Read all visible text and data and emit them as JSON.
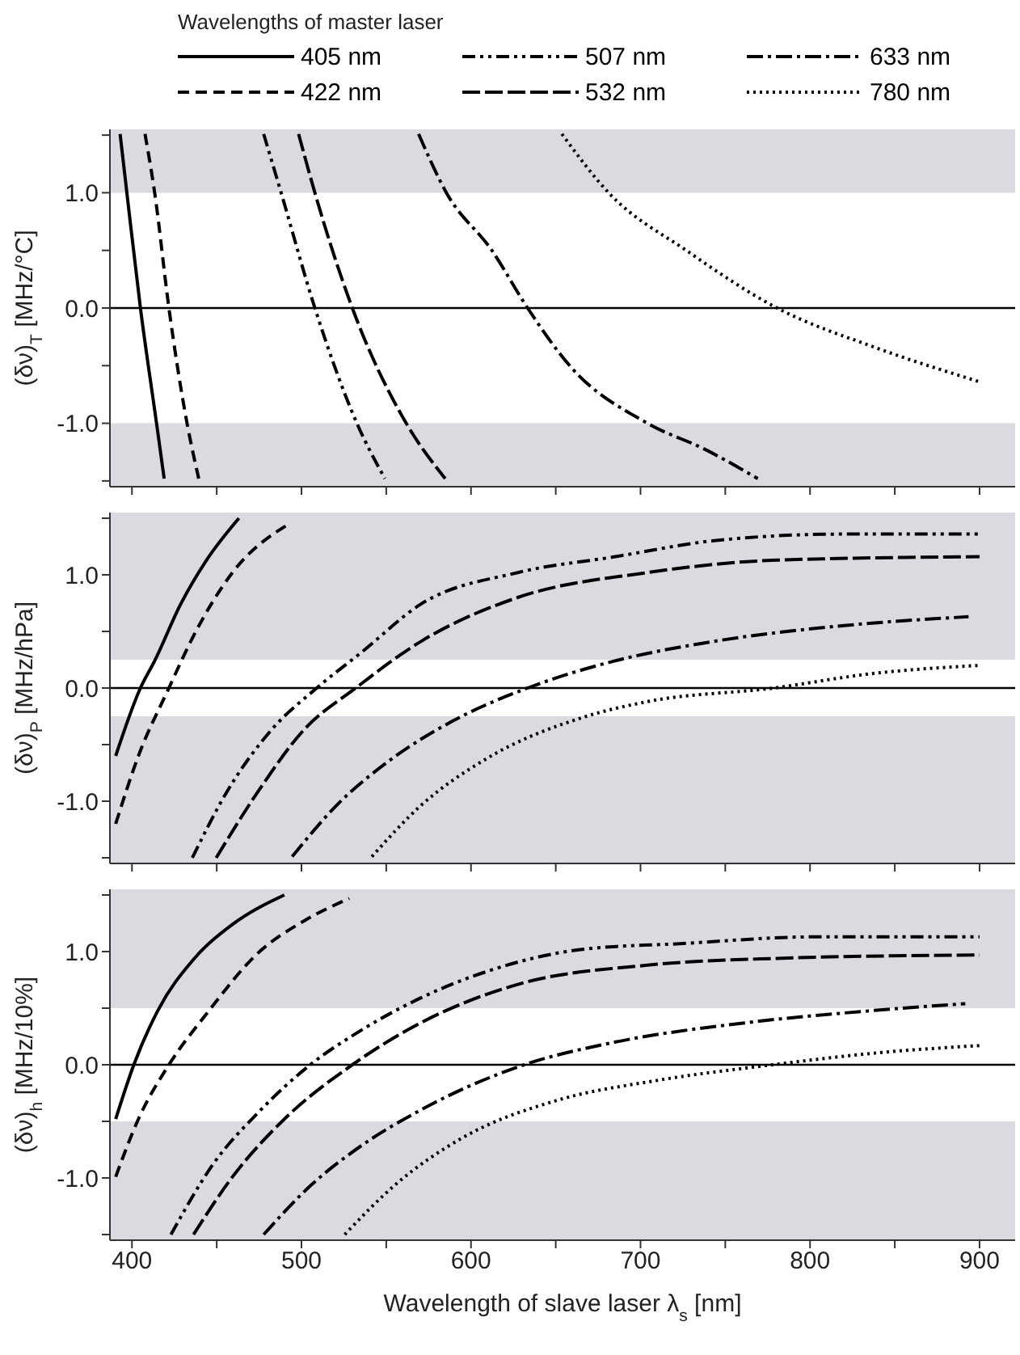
{
  "chart_data": [
    {
      "type": "line",
      "legend_title": "Wavelengths of master laser",
      "legend": "top",
      "ylabel": "(δν)$_{T}$ [MHz/°C]",
      "xlim": [
        387,
        921
      ],
      "xticks": [
        400,
        {
          "value": 450,
          "label": null
        },
        500,
        {
          "value": 550,
          "label": null
        },
        600,
        {
          "value": 650,
          "label": null
        },
        700,
        {
          "value": 750,
          "label": null
        },
        800,
        {
          "value": 850,
          "label": null
        },
        900
      ],
      "ylim": [
        -1.55,
        1.55
      ],
      "yticks": [
        {
          "value": -1.5,
          "label": null
        },
        {
          "value": -1,
          "label": "-1.0"
        },
        {
          "value": -0.5,
          "label": null
        },
        {
          "value": 0,
          "label": "0.0"
        },
        {
          "value": 0.5,
          "label": null
        },
        {
          "value": 1,
          "label": "1.0"
        },
        {
          "value": 1.5,
          "label": null
        }
      ],
      "tick_labels": "y",
      "grid": false,
      "marker": "none",
      "bands": [
        {
          "axis": "y",
          "from": 1,
          "to": 1.55,
          "color": "#d9dbe0"
        },
        {
          "axis": "y",
          "from": -1.55,
          "to": -1,
          "color": "#d9dbe0"
        }
      ],
      "ref_lines": [
        {
          "axis": "y",
          "value": 0,
          "color": "#000000"
        }
      ],
      "series": [
        {
          "name": "405 nm",
          "color": "#000000",
          "line_style": "solid",
          "x": [
            393,
            397,
            405,
            414.5,
            419
          ],
          "values": [
            1.51,
            1.0,
            0,
            -1.0,
            -1.48
          ]
        },
        {
          "name": "422 nm",
          "color": "#000000",
          "line_style": "dashed",
          "x": [
            407.7,
            413.4,
            421.8,
            432.5,
            439.4
          ],
          "values": [
            1.51,
            1.0,
            0,
            -1.0,
            -1.48
          ]
        },
        {
          "name": "507 nm",
          "color": "#000000",
          "line_style": "dashdotdot",
          "x": [
            477.7,
            488,
            507.9,
            532.7,
            549.2
          ],
          "values": [
            1.51,
            1.0,
            0,
            -1.0,
            -1.48
          ]
        },
        {
          "name": "532 nm",
          "color": "#000000",
          "line_style": "longdash",
          "x": [
            498.3,
            507.9,
            530,
            561.8,
            584.8
          ],
          "values": [
            1.51,
            1.0,
            0,
            -1.0,
            -1.48
          ]
        },
        {
          "name": "633 nm",
          "color": "#000000",
          "line_style": "dashdot",
          "x": [
            569.1,
            585.5,
            612.3,
            633.4,
            658.2,
            704.1,
            738.6,
            769.2
          ],
          "values": [
            1.51,
            1.0,
            0.5,
            0,
            -0.5,
            -1.0,
            -1.23,
            -1.48
          ]
        },
        {
          "name": "780 nm",
          "color": "#000000",
          "line_style": "dotted",
          "x": [
            653.6,
            681.2,
            727,
            780.6,
            838,
            900
          ],
          "values": [
            1.51,
            1.0,
            0.5,
            0,
            -0.34,
            -0.64
          ]
        }
      ]
    },
    {
      "type": "line",
      "legend": false,
      "ylabel": "(δν)$_{P}$ [MHz/hPa]",
      "xlim": [
        387,
        921
      ],
      "xticks": [
        400,
        {
          "value": 450,
          "label": null
        },
        500,
        {
          "value": 550,
          "label": null
        },
        600,
        {
          "value": 650,
          "label": null
        },
        700,
        {
          "value": 750,
          "label": null
        },
        800,
        {
          "value": 850,
          "label": null
        },
        900
      ],
      "ylim": [
        -1.55,
        1.55
      ],
      "yticks": [
        {
          "value": -1.5,
          "label": null
        },
        {
          "value": -1,
          "label": "-1.0"
        },
        {
          "value": -0.5,
          "label": null
        },
        {
          "value": 0,
          "label": "0.0"
        },
        {
          "value": 0.5,
          "label": null
        },
        {
          "value": 1,
          "label": "1.0"
        },
        {
          "value": 1.5,
          "label": null
        }
      ],
      "tick_labels": "y",
      "grid": false,
      "marker": "none",
      "bands": [
        {
          "axis": "y",
          "from": 0.25,
          "to": 1.55,
          "color": "#d9dbe0"
        },
        {
          "axis": "y",
          "from": -1.55,
          "to": -0.25,
          "color": "#d9dbe0"
        }
      ],
      "ref_lines": [
        {
          "axis": "y",
          "value": 0,
          "color": "#000000"
        }
      ],
      "series": [
        {
          "color": "#000000",
          "line_style": "solid",
          "x": [
            390.4,
            405,
            413.4,
            428.7,
            444,
            463.1
          ],
          "values": [
            -0.6,
            0,
            0.24,
            0.74,
            1.13,
            1.5
          ]
        },
        {
          "color": "#000000",
          "line_style": "dashed",
          "x": [
            390.4,
            403.8,
            421.8,
            436.3,
            459.3,
            493.7
          ],
          "values": [
            -1.2,
            -0.6,
            0,
            0.46,
            1.02,
            1.46
          ]
        },
        {
          "color": "#000000",
          "line_style": "dashdotdot",
          "x": [
            435.6,
            455.5,
            482.3,
            509,
            535.8,
            570.3,
            627.6,
            685,
            742.4,
            818.9,
            900
          ],
          "values": [
            -1.5,
            -0.93,
            -0.37,
            0,
            0.32,
            0.74,
            1.02,
            1.16,
            1.3,
            1.36,
            1.36
          ]
        },
        {
          "color": "#000000",
          "line_style": "longdash",
          "x": [
            449.7,
            474.6,
            501.4,
            532,
            570.3,
            627.6,
            704.1,
            780.6,
            900
          ],
          "values": [
            -1.5,
            -0.91,
            -0.37,
            0,
            0.41,
            0.8,
            1.02,
            1.13,
            1.16
          ]
        },
        {
          "color": "#000000",
          "line_style": "dashdot",
          "x": [
            494.5,
            520.5,
            551.1,
            589.4,
            633.4,
            685,
            742.4,
            818.9,
            893.5
          ],
          "values": [
            -1.49,
            -1.04,
            -0.65,
            -0.29,
            0,
            0.24,
            0.41,
            0.55,
            0.63
          ]
        },
        {
          "color": "#000000",
          "line_style": "dotted",
          "x": [
            541.5,
            570.3,
            608.5,
            665.9,
            704.1,
            778.7,
            838,
            900
          ],
          "values": [
            -1.49,
            -1.04,
            -0.63,
            -0.26,
            -0.12,
            0,
            0.13,
            0.2
          ]
        }
      ]
    },
    {
      "type": "line",
      "legend": false,
      "ylabel": "(δν)$_{h}$ [MHz/10%]",
      "xlabel": "Wavelength of slave laser λ$_{s}$ [nm]",
      "xlim": [
        387,
        921
      ],
      "xticks": [
        400,
        {
          "value": 450,
          "label": null
        },
        500,
        {
          "value": 550,
          "label": null
        },
        600,
        {
          "value": 650,
          "label": null
        },
        700,
        {
          "value": 750,
          "label": null
        },
        800,
        {
          "value": 850,
          "label": null
        },
        900
      ],
      "ylim": [
        -1.55,
        1.55
      ],
      "yticks": [
        {
          "value": -1.5,
          "label": null
        },
        {
          "value": -1,
          "label": "-1.0"
        },
        {
          "value": -0.5,
          "label": null
        },
        {
          "value": 0,
          "label": "0.0"
        },
        {
          "value": 0.5,
          "label": null
        },
        {
          "value": 1,
          "label": "1.0"
        },
        {
          "value": 1.5,
          "label": null
        }
      ],
      "grid": false,
      "marker": "none",
      "bands": [
        {
          "axis": "y",
          "from": 0.5,
          "to": 1.55,
          "color": "#d9dbe0"
        },
        {
          "axis": "y",
          "from": -1.55,
          "to": -0.5,
          "color": "#d9dbe0"
        }
      ],
      "ref_lines": [
        {
          "axis": "y",
          "value": 0,
          "color": "#000000"
        }
      ],
      "series": [
        {
          "color": "#000000",
          "line_style": "solid",
          "x": [
            390.4,
            401.1,
            415.3,
            436.3,
            459.3,
            489.9
          ],
          "values": [
            -0.48,
            0,
            0.48,
            0.93,
            1.24,
            1.5
          ]
        },
        {
          "color": "#000000",
          "line_style": "dashed",
          "x": [
            390.4,
            403.8,
            421.8,
            444,
            474.6,
            501.4,
            528.2
          ],
          "values": [
            -0.99,
            -0.48,
            0,
            0.45,
            0.99,
            1.27,
            1.47
          ]
        },
        {
          "color": "#000000",
          "line_style": "dashdotdot",
          "x": [
            423,
            447.8,
            474.6,
            505.2,
            535.8,
            570.3,
            608.5,
            665.9,
            723.3,
            803.3,
            900
          ],
          "values": [
            -1.5,
            -0.88,
            -0.42,
            0,
            0.31,
            0.59,
            0.82,
            1.02,
            1.07,
            1.13,
            1.13
          ]
        },
        {
          "color": "#000000",
          "line_style": "longdash",
          "x": [
            436.3,
            459.3,
            489.9,
            530,
            570.3,
            627.6,
            704.1,
            780.6,
            900
          ],
          "values": [
            -1.5,
            -0.99,
            -0.48,
            0,
            0.37,
            0.71,
            0.88,
            0.94,
            0.97
          ]
        },
        {
          "color": "#000000",
          "line_style": "dashdot",
          "x": [
            477.7,
            505.2,
            535.8,
            570.3,
            631.4,
            685,
            761.5,
            838,
            891.6
          ],
          "values": [
            -1.5,
            -1.07,
            -0.71,
            -0.4,
            0,
            0.2,
            0.37,
            0.48,
            0.54
          ]
        },
        {
          "color": "#000000",
          "line_style": "dotted",
          "x": [
            525.5,
            556.1,
            594.4,
            651.8,
            709.1,
            778,
            843,
            900
          ],
          "values": [
            -1.5,
            -1.05,
            -0.65,
            -0.31,
            -0.14,
            0,
            0.11,
            0.17
          ]
        }
      ]
    }
  ]
}
